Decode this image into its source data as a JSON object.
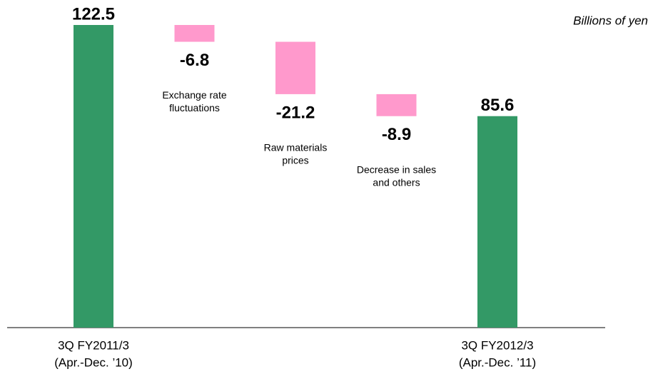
{
  "chart_data": {
    "type": "waterfall",
    "unit_label": "Billions of yen",
    "categories": [
      [
        "3Q FY2011/3",
        "(Apr.-Dec. ’10)"
      ],
      [
        "Exchange rate",
        "fluctuations"
      ],
      [
        "Raw materials",
        "prices"
      ],
      [
        "Decrease in sales",
        "and others"
      ],
      [
        "3Q FY2012/3",
        "(Apr.-Dec. ’11)"
      ]
    ],
    "values": [
      122.5,
      -6.8,
      -21.2,
      -8.9,
      85.6
    ],
    "totals": [
      true,
      false,
      false,
      false,
      true
    ],
    "total_color": "#339966",
    "decrease_color": "#ff99cc"
  }
}
